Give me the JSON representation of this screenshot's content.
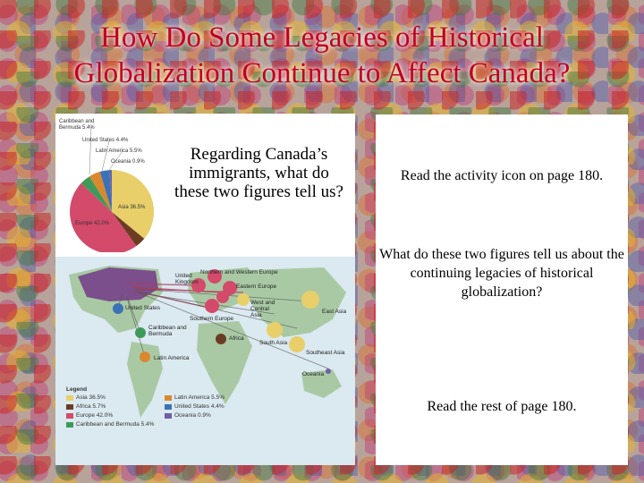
{
  "slide": {
    "title_line1": "How Do Some Legacies of Historical",
    "title_line2": "Globalization Continue to Affect Canada?"
  },
  "question": "Regarding Canada’s immigrants, what do these two figures tell us?",
  "pie": {
    "labels": {
      "caribbean": "Caribbean and Bermuda 5.4%",
      "us": "United States 4.4%",
      "latin": "Latin America 5.5%",
      "oceania": "Oceania 0.9%",
      "asia": "Asia 36.5%",
      "europe": "Europe 42.0%"
    }
  },
  "map": {
    "labels": {
      "nw_europe": "Northern and Western Europe",
      "uk": "United Kingdom",
      "e_europe": "Eastern Europe",
      "us": "United States",
      "wc_asia": "West and Central Asia",
      "s_europe": "Southern Europe",
      "e_asia": "East Asia",
      "caribbean": "Caribbean and Bermuda",
      "africa": "Africa",
      "s_asia": "South Asia",
      "se_asia": "Southeast Asia",
      "latin": "Latin America",
      "oceania": "Oceania"
    }
  },
  "legend": {
    "title": "Legend",
    "items": [
      {
        "label": "Asia 36.5%",
        "color": "#e8cf6a"
      },
      {
        "label": "Latin America 5.5%",
        "color": "#d9882f"
      },
      {
        "label": "Africa 5.7%",
        "color": "#6b3c24"
      },
      {
        "label": "United States 4.4%",
        "color": "#3a73b5"
      },
      {
        "label": "Europe 42.0%",
        "color": "#d44a6b"
      },
      {
        "label": "Oceania 0.9%",
        "color": "#6d5fa8"
      },
      {
        "label": "Caribbean and Bermuda 5.4%",
        "color": "#3f9a5a"
      }
    ]
  },
  "right": {
    "p1": "Read the activity icon on page 180.",
    "p2": "What do these two figures tell us about the continuing legacies of historical globalization?",
    "p3": "Read the rest of page 180."
  },
  "colors": {
    "title": "#c0001f",
    "asia": "#e8cf6a",
    "europe": "#d44a6b",
    "africa": "#6b3c24",
    "latin": "#d9882f",
    "caribbean": "#3f9a5a",
    "us": "#3a73b5",
    "oceania": "#6d5fa8",
    "map_land": "#a9c9a4",
    "map_water": "#dbe9f1"
  }
}
